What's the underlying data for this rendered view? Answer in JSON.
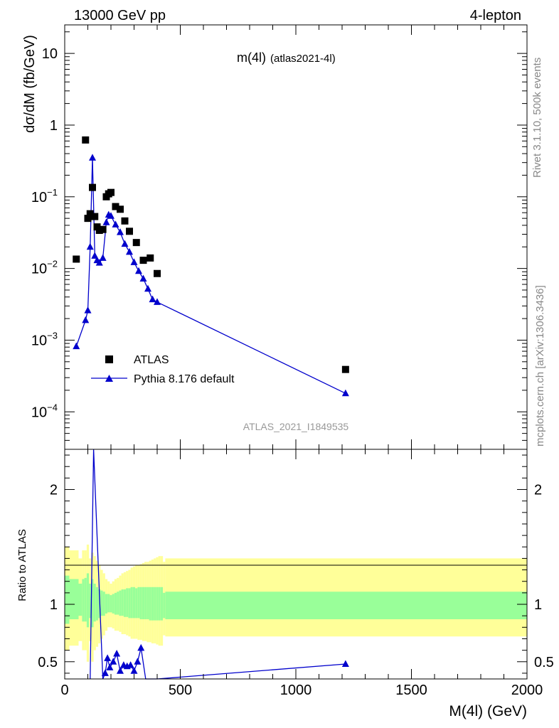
{
  "header": {
    "left": "13000 GeV pp",
    "right": "4-lepton"
  },
  "plot_title": {
    "main": "m(4l)",
    "sub": "(atlas2021-4l)"
  },
  "side_text": {
    "rivet": "Rivet 3.1.10,  500k events",
    "mcplots": "mcplots.cern.ch [arXiv:1306.3436]"
  },
  "analysis_id": "ATLAS_2021_I1849535",
  "legend": {
    "data_label": "ATLAS",
    "mc_label": "Pythia 8.176 default"
  },
  "colors": {
    "data": "#000000",
    "mc": "#0000cc",
    "band_inner": "#99ff99",
    "band_outer": "#ffff99"
  },
  "chart_data": [
    {
      "type": "scatter",
      "panel": "main",
      "ylabel": "dσ/dM (fb/GeV)",
      "yscale": "log",
      "xlim": [
        0,
        2000
      ],
      "ylim": [
        3e-05,
        25
      ],
      "y_ticks": [
        {
          "v": 0.0001,
          "label": "10",
          "exp": "−4"
        },
        {
          "v": 0.001,
          "label": "10",
          "exp": "−3"
        },
        {
          "v": 0.01,
          "label": "10",
          "exp": "−2"
        },
        {
          "v": 0.1,
          "label": "10",
          "exp": "−1"
        },
        {
          "v": 1,
          "label": "1",
          "exp": ""
        },
        {
          "v": 10,
          "label": "10",
          "exp": ""
        }
      ],
      "series": [
        {
          "name": "ATLAS",
          "x": [
            50,
            90,
            100,
            110,
            120,
            130,
            140,
            150,
            165,
            180,
            190,
            200,
            220,
            240,
            260,
            280,
            310,
            340,
            370,
            400,
            1215
          ],
          "y": [
            0.0135,
            0.62,
            0.05,
            0.058,
            0.135,
            0.053,
            0.038,
            0.034,
            0.035,
            0.1,
            0.11,
            0.115,
            0.073,
            0.067,
            0.046,
            0.033,
            0.023,
            0.013,
            0.014,
            0.0085,
            0.00039
          ]
        },
        {
          "name": "Pythia 8.176 default",
          "x": [
            50,
            90,
            100,
            110,
            120,
            130,
            140,
            150,
            165,
            180,
            190,
            200,
            220,
            240,
            260,
            280,
            300,
            320,
            340,
            360,
            380,
            400,
            1215
          ],
          "y": [
            0.00082,
            0.0019,
            0.0026,
            0.02,
            0.35,
            0.015,
            0.013,
            0.012,
            0.014,
            0.044,
            0.056,
            0.054,
            0.041,
            0.032,
            0.022,
            0.017,
            0.0122,
            0.0092,
            0.0072,
            0.0052,
            0.0037,
            0.0034,
            0.000181
          ]
        }
      ]
    },
    {
      "type": "line",
      "panel": "ratio",
      "ylabel": "Ratio to ATLAS",
      "xlabel": "M(4l) (GeV)",
      "xlim": [
        0,
        2000
      ],
      "ylim": [
        0.35,
        2.35
      ],
      "x_ticks": [
        0,
        500,
        1000,
        1500,
        2000
      ],
      "y_ticks": [
        0.5,
        1,
        2
      ],
      "series": [
        {
          "name": "Pythia 8.176 default",
          "x": [
            110,
            125,
            165,
            175,
            185,
            195,
            210,
            225,
            240,
            255,
            270,
            285,
            300,
            315,
            330,
            350,
            400,
            1215
          ],
          "y": [
            0.35,
            2.35,
            0.35,
            0.4,
            0.53,
            0.45,
            0.5,
            0.57,
            0.42,
            0.47,
            0.46,
            0.47,
            0.42,
            0.5,
            0.62,
            0.35,
            0.35,
            0.48
          ]
        }
      ],
      "bands": {
        "edges": [
          0,
          20,
          60,
          75,
          85,
          95,
          105,
          115,
          125,
          135,
          145,
          155,
          165,
          175,
          185,
          195,
          205,
          215,
          225,
          235,
          245,
          255,
          265,
          275,
          285,
          295,
          305,
          315,
          325,
          335,
          345,
          355,
          365,
          375,
          385,
          395,
          405,
          415,
          425,
          435,
          2000
        ],
        "inner": [
          [
            0.83,
            1.25
          ],
          [
            0.87,
            1.22
          ],
          [
            0.9,
            1.18
          ],
          [
            0.85,
            1.22
          ],
          [
            0.85,
            1.23
          ],
          [
            0.8,
            1.27
          ],
          [
            0.88,
            1.18
          ],
          [
            0.8,
            1.22
          ],
          [
            0.85,
            1.18
          ],
          [
            0.86,
            1.15
          ],
          [
            0.88,
            1.13
          ],
          [
            0.9,
            1.12
          ],
          [
            0.9,
            1.11
          ],
          [
            0.92,
            1.09
          ],
          [
            0.93,
            1.09
          ],
          [
            0.93,
            1.08
          ],
          [
            0.92,
            1.09
          ],
          [
            0.91,
            1.1
          ],
          [
            0.91,
            1.11
          ],
          [
            0.9,
            1.12
          ],
          [
            0.9,
            1.13
          ],
          [
            0.89,
            1.13
          ],
          [
            0.89,
            1.14
          ],
          [
            0.88,
            1.14
          ],
          [
            0.88,
            1.15
          ],
          [
            0.88,
            1.15
          ],
          [
            0.88,
            1.14
          ],
          [
            0.88,
            1.15
          ],
          [
            0.87,
            1.15
          ],
          [
            0.87,
            1.15
          ],
          [
            0.87,
            1.15
          ],
          [
            0.87,
            1.15
          ],
          [
            0.86,
            1.15
          ],
          [
            0.86,
            1.15
          ],
          [
            0.86,
            1.15
          ],
          [
            0.86,
            1.15
          ],
          [
            0.86,
            1.15
          ],
          [
            0.86,
            1.15
          ],
          [
            0.88,
            1.1
          ],
          [
            0.87,
            1.11
          ]
        ],
        "outer": [
          [
            0.6,
            1.5
          ],
          [
            0.64,
            1.47
          ],
          [
            0.68,
            1.4
          ],
          [
            0.6,
            1.47
          ],
          [
            0.6,
            1.47
          ],
          [
            0.5,
            1.52
          ],
          [
            0.68,
            1.4
          ],
          [
            0.5,
            1.45
          ],
          [
            0.6,
            1.42
          ],
          [
            0.63,
            1.38
          ],
          [
            0.66,
            1.34
          ],
          [
            0.7,
            1.3
          ],
          [
            0.73,
            1.27
          ],
          [
            0.77,
            1.22
          ],
          [
            0.8,
            1.2
          ],
          [
            0.8,
            1.18
          ],
          [
            0.79,
            1.2
          ],
          [
            0.77,
            1.22
          ],
          [
            0.77,
            1.23
          ],
          [
            0.76,
            1.25
          ],
          [
            0.74,
            1.27
          ],
          [
            0.74,
            1.28
          ],
          [
            0.73,
            1.29
          ],
          [
            0.72,
            1.3
          ],
          [
            0.7,
            1.32
          ],
          [
            0.7,
            1.33
          ],
          [
            0.7,
            1.34
          ],
          [
            0.69,
            1.34
          ],
          [
            0.69,
            1.35
          ],
          [
            0.68,
            1.36
          ],
          [
            0.68,
            1.37
          ],
          [
            0.67,
            1.37
          ],
          [
            0.67,
            1.38
          ],
          [
            0.66,
            1.39
          ],
          [
            0.66,
            1.4
          ],
          [
            0.65,
            1.41
          ],
          [
            0.64,
            1.42
          ],
          [
            0.64,
            1.42
          ],
          [
            0.73,
            1.37
          ],
          [
            0.72,
            1.4
          ]
        ]
      }
    }
  ]
}
